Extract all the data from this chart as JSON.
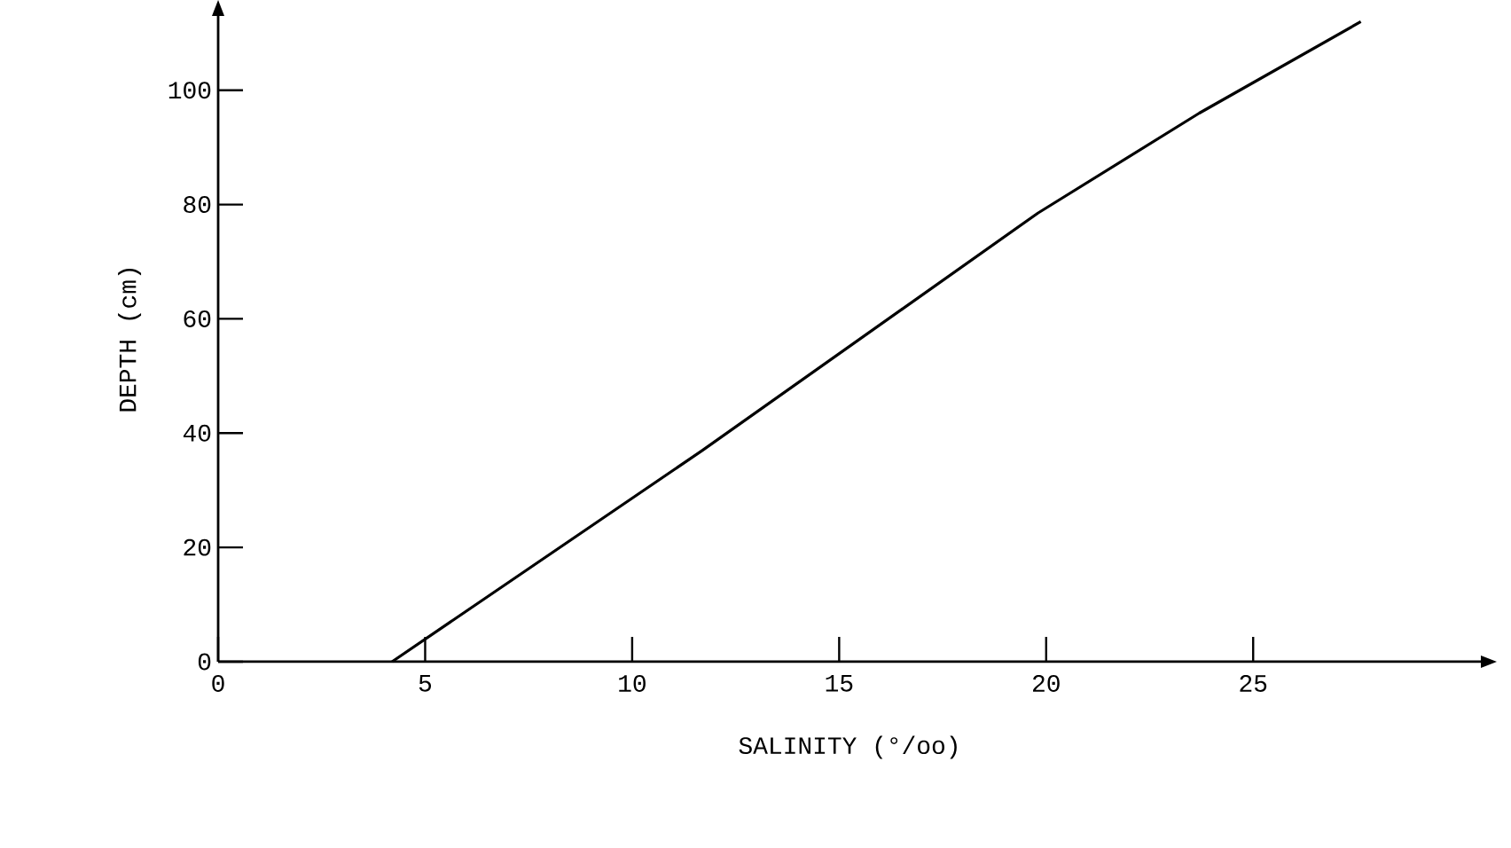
{
  "chart_data": {
    "type": "line",
    "xlabel": "SALINITY (°/oo)",
    "ylabel": "DEPTH (cm)",
    "x": [
      4.2,
      11.7,
      19.8,
      23.7,
      27.6
    ],
    "series": [
      {
        "color": "#000000",
        "values": [
          0,
          37,
          78.5,
          96,
          112
        ]
      }
    ],
    "xlim": [
      0,
      30.5
    ],
    "ylim": [
      0,
      113
    ],
    "xticks": [
      0,
      5,
      10,
      15,
      20,
      25
    ],
    "yticks": [
      0,
      20,
      40,
      60,
      80,
      100
    ],
    "grid": false,
    "marker": "none",
    "line_style": "solid"
  }
}
